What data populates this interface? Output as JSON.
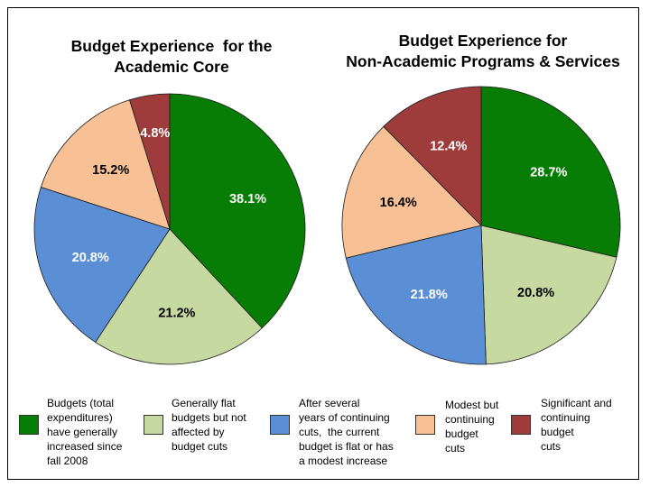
{
  "legend": [
    {
      "label": "Budgets (total\nexpenditures)\nhave generally\nincreased since\nfall 2008",
      "color": "#087d05"
    },
    {
      "label": "Generally flat\nbudgets but not\naffected by\nbudget cuts",
      "color": "#c6d9a1"
    },
    {
      "label": "After several\nyears of continuing\ncuts,  the current\nbudget is flat or has\na modest increase",
      "color": "#5a8fd6"
    },
    {
      "label": "Modest but\ncontinuing\nbudget\ncuts",
      "color": "#f8c195"
    },
    {
      "label": "Significant and\ncontinuing\nbudget\ncuts",
      "color": "#9e3b3b"
    }
  ],
  "chart_data": [
    {
      "type": "pie",
      "title": "Budget Experience  for the\nAcademic Core",
      "values": [
        38.1,
        21.2,
        20.8,
        15.2,
        4.8
      ],
      "labels": [
        "38.1%",
        "21.2%",
        "20.8%",
        "15.2%",
        "4.8%"
      ],
      "colors": [
        "#087d05",
        "#c6d9a1",
        "#5a8fd6",
        "#f8c195",
        "#9e3b3b"
      ],
      "label_colors": [
        "#ffffff",
        "#000000",
        "#ffffff",
        "#000000",
        "#ffffff"
      ]
    },
    {
      "type": "pie",
      "title": "Budget Experience for\nNon-Academic Programs & Services",
      "values": [
        28.7,
        20.8,
        21.8,
        16.4,
        12.4
      ],
      "labels": [
        "28.7%",
        "20.8%",
        "21.8%",
        "16.4%",
        "12.4%"
      ],
      "colors": [
        "#087d05",
        "#c6d9a1",
        "#5a8fd6",
        "#f8c195",
        "#9e3b3b"
      ],
      "label_colors": [
        "#ffffff",
        "#000000",
        "#ffffff",
        "#000000",
        "#ffffff"
      ]
    }
  ]
}
